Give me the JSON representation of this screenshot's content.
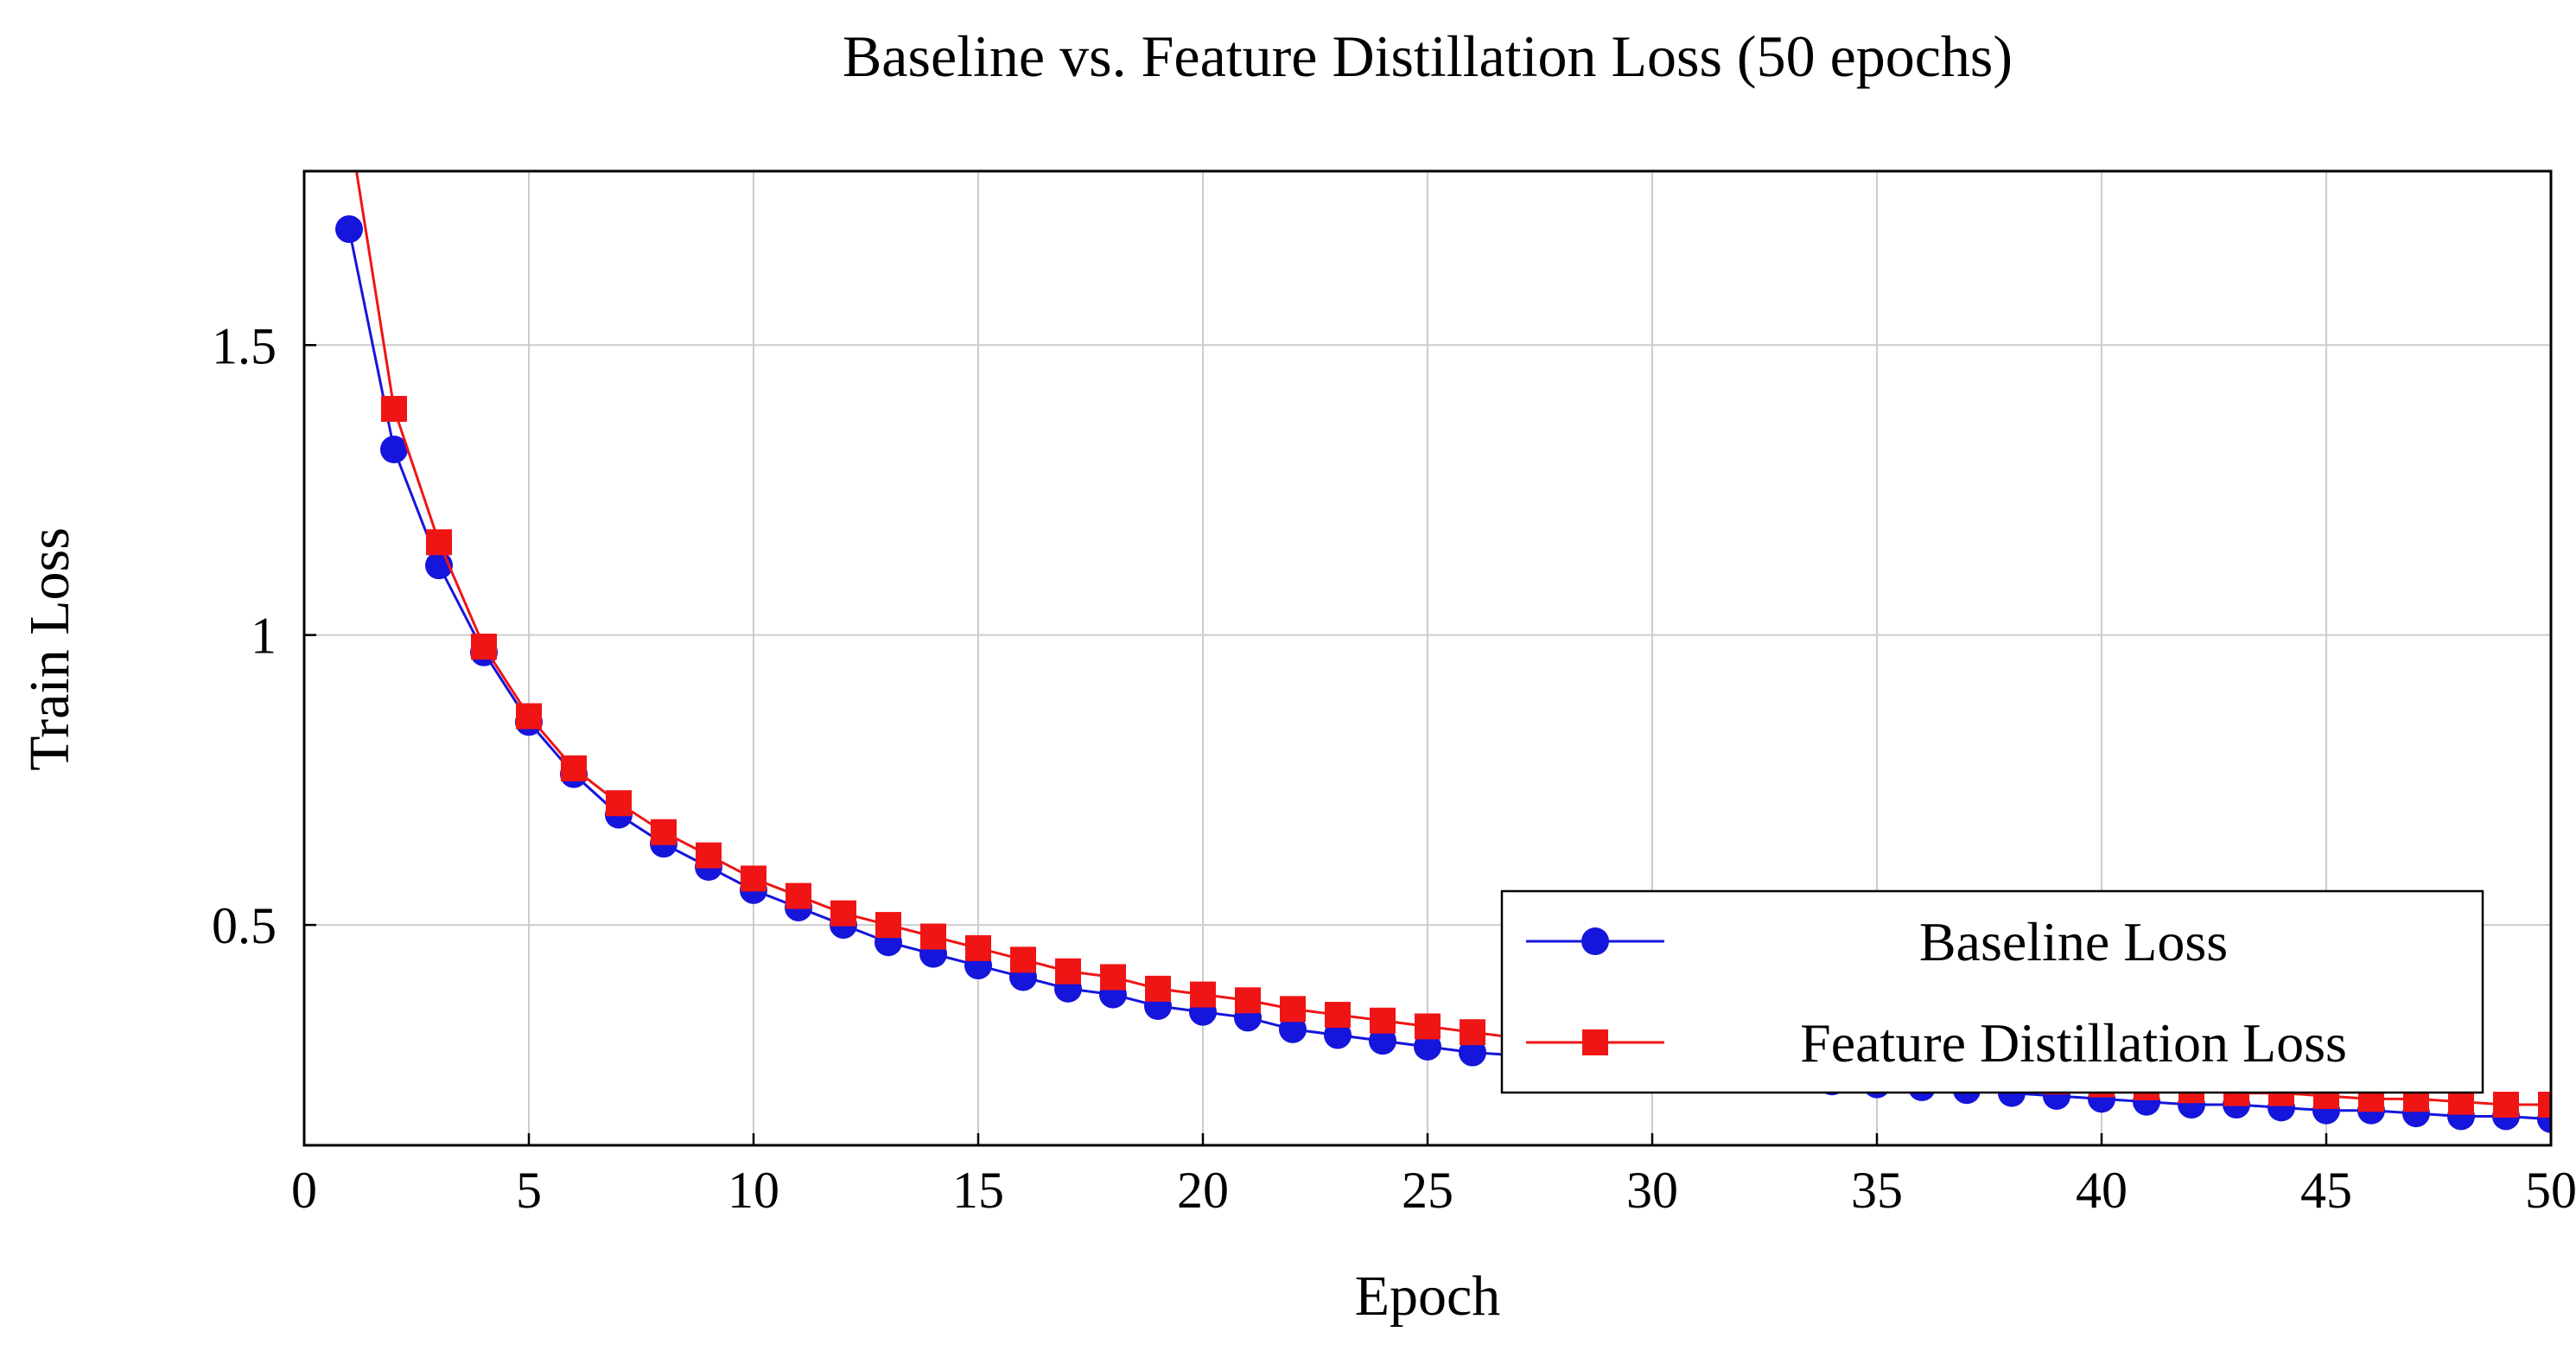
{
  "chart_data": {
    "type": "line",
    "title": "Baseline vs. Feature Distillation Loss (50 epochs)",
    "xlabel": "Epoch",
    "ylabel": "Train Loss",
    "xlim": [
      0,
      50
    ],
    "ylim": [
      0.12,
      1.8
    ],
    "xticks": [
      0,
      5,
      10,
      15,
      20,
      25,
      30,
      35,
      40,
      45,
      50
    ],
    "xtick_labels": [
      "0",
      "5",
      "10",
      "15",
      "20",
      "25",
      "30",
      "35",
      "40",
      "45",
      "50"
    ],
    "yticks": [
      0.5,
      1,
      1.5
    ],
    "ytick_labels": [
      "0.5",
      "1",
      "1.5"
    ],
    "grid": true,
    "grid_color": "#cccccc",
    "frame_color": "#000000",
    "legend": {
      "position": "inside lower right",
      "border_color": "#000000",
      "background": "#ffffff"
    },
    "x": [
      1,
      2,
      3,
      4,
      5,
      6,
      7,
      8,
      9,
      10,
      11,
      12,
      13,
      14,
      15,
      16,
      17,
      18,
      19,
      20,
      21,
      22,
      23,
      24,
      25,
      26,
      27,
      28,
      29,
      30,
      31,
      32,
      33,
      34,
      35,
      36,
      37,
      38,
      39,
      40,
      41,
      42,
      43,
      44,
      45,
      46,
      47,
      48,
      49,
      50
    ],
    "series": [
      {
        "name": "Baseline Loss",
        "color": "#1515dc",
        "marker": "circle",
        "values": [
          1.7,
          1.32,
          1.12,
          0.97,
          0.85,
          0.76,
          0.69,
          0.64,
          0.6,
          0.56,
          0.53,
          0.5,
          0.47,
          0.45,
          0.43,
          0.41,
          0.39,
          0.38,
          0.36,
          0.35,
          0.34,
          0.32,
          0.31,
          0.3,
          0.29,
          0.28,
          0.275,
          0.27,
          0.26,
          0.255,
          0.25,
          0.24,
          0.235,
          0.23,
          0.225,
          0.22,
          0.215,
          0.21,
          0.205,
          0.2,
          0.195,
          0.19,
          0.19,
          0.185,
          0.18,
          0.18,
          0.175,
          0.17,
          0.17,
          0.165
        ]
      },
      {
        "name": "Feature Distillation Loss",
        "color": "#ef1515",
        "marker": "square",
        "values": [
          1.88,
          1.39,
          1.16,
          0.98,
          0.86,
          0.77,
          0.71,
          0.66,
          0.62,
          0.58,
          0.55,
          0.52,
          0.5,
          0.48,
          0.46,
          0.44,
          0.42,
          0.41,
          0.39,
          0.38,
          0.37,
          0.355,
          0.345,
          0.335,
          0.325,
          0.315,
          0.305,
          0.3,
          0.29,
          0.285,
          0.275,
          0.27,
          0.265,
          0.255,
          0.25,
          0.245,
          0.24,
          0.235,
          0.23,
          0.225,
          0.22,
          0.215,
          0.21,
          0.21,
          0.205,
          0.2,
          0.2,
          0.195,
          0.19,
          0.19
        ]
      }
    ]
  }
}
